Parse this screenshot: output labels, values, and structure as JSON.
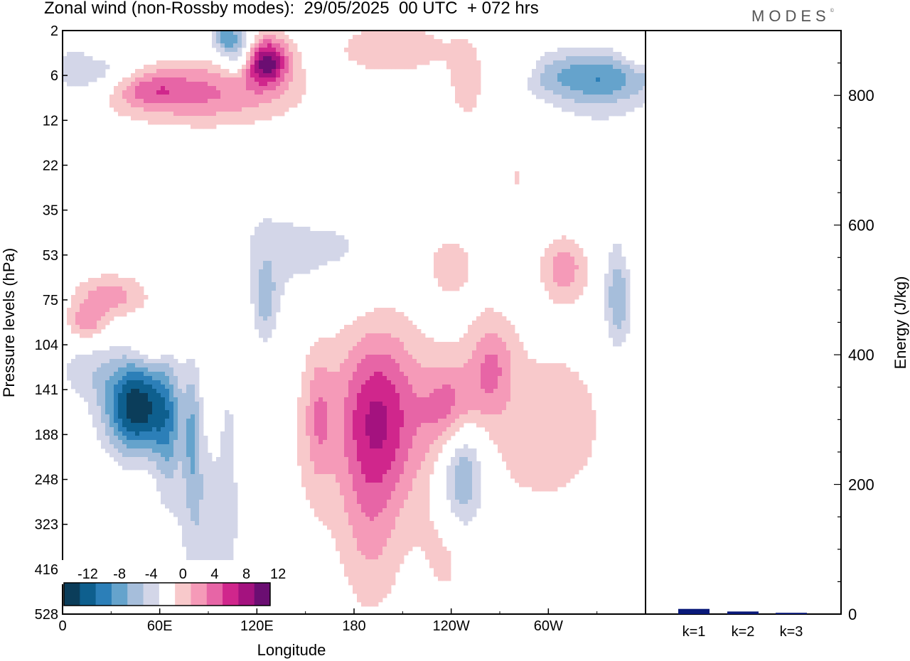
{
  "title": "Zonal wind (non-Rossby modes):  29/05/2025  00 UTC  + 072 hrs",
  "brand": "MODES",
  "brand_mark": "©",
  "colors": {
    "neg": [
      "#0b3d5a",
      "#0e5f8e",
      "#2c7fb8",
      "#65a3cc",
      "#a6bedb",
      "#d3d6e8"
    ],
    "pos": [
      "#f8c9cb",
      "#f59ab8",
      "#e765a6",
      "#d0268c",
      "#a4127f",
      "#6b0e72"
    ],
    "energy_bar": "#0a1a7a"
  },
  "chart_data": [
    {
      "type": "heatmap",
      "title": "Zonal wind (non-Rossby modes):  29/05/2025  00 UTC  + 072 hrs",
      "xlabel": "Longitude",
      "ylabel": "Pressure levels (hPa)",
      "x_ticks": [
        "0",
        "60E",
        "120E",
        "180",
        "120W",
        "60W"
      ],
      "x_tick_deg": [
        0,
        60,
        120,
        180,
        240,
        300
      ],
      "xlim_deg": [
        0,
        360
      ],
      "y_levels": [
        2,
        6,
        12,
        22,
        35,
        53,
        75,
        104,
        141,
        188,
        248,
        323,
        416,
        528
      ],
      "colorbar_ticks": [
        "-12",
        "-8",
        "-4",
        "0",
        "4",
        "8",
        "12"
      ],
      "features": [
        {
          "lon": 46,
          "lev": 8.4,
          "dlon": 14,
          "dlev": 0.75,
          "value": -14
        },
        {
          "lon": 65,
          "lev": 9.0,
          "dlon": 6,
          "dlev": 1.2,
          "value": -5
        },
        {
          "lon": 80,
          "lev": 9.0,
          "dlon": 4,
          "dlev": 1.2,
          "value": -5
        },
        {
          "lon": 88,
          "lev": 10.8,
          "dlon": 12,
          "dlev": 1.6,
          "value": -4
        },
        {
          "lon": 103,
          "lev": 10.0,
          "dlon": 4,
          "dlev": 2.2,
          "value": -3
        },
        {
          "lon": 125,
          "lev": 6.0,
          "dlon": 6,
          "dlev": 0.8,
          "value": -5
        },
        {
          "lon": 15,
          "lev": 7.6,
          "dlon": 14,
          "dlev": 0.5,
          "value": -3
        },
        {
          "lon": 25,
          "lev": 1.0,
          "dlon": 15,
          "dlev": 0.35,
          "value": -4
        },
        {
          "lon": 110,
          "lev": 0.5,
          "dlon": 8,
          "dlev": 0.4,
          "value": -9
        },
        {
          "lon": 100,
          "lev": 0.1,
          "dlon": 6,
          "dlev": 0.3,
          "value": -6
        },
        {
          "lon": 330,
          "lev": 1.0,
          "dlon": 35,
          "dlev": 0.4,
          "value": -7
        },
        {
          "lon": 343,
          "lev": 6.0,
          "dlon": 6,
          "dlev": 0.8,
          "value": -6
        },
        {
          "lon": 247,
          "lev": 9.9,
          "dlon": 10,
          "dlev": 1.0,
          "value": -8
        },
        {
          "lon": 78,
          "lev": 4.4,
          "dlon": 50,
          "dlev": 0.6,
          "value": -2
        },
        {
          "lon": 143,
          "lev": 5.2,
          "dlon": 14,
          "dlev": 0.8,
          "value": -2
        },
        {
          "lon": 175,
          "lev": 5.0,
          "dlon": 15,
          "dlev": 0.8,
          "value": -2
        },
        {
          "lon": 346,
          "lev": 3.6,
          "dlon": 8,
          "dlev": 0.8,
          "value": -2
        },
        {
          "lon": 330,
          "lev": 1.6,
          "dlon": 20,
          "dlev": 0.5,
          "value": -2
        },
        {
          "lon": 5,
          "lev": 0.8,
          "dlon": 8,
          "dlev": 0.6,
          "value": -2
        },
        {
          "lon": 88,
          "lev": 1.4,
          "dlon": 40,
          "dlev": 0.5,
          "value": 6
        },
        {
          "lon": 125,
          "lev": 0.7,
          "dlon": 10,
          "dlev": 0.35,
          "value": 10
        },
        {
          "lon": 118,
          "lev": 0.55,
          "dlon": 14,
          "dlev": 0.45,
          "value": 4
        },
        {
          "lon": 52,
          "lev": 1.3,
          "dlon": 18,
          "dlev": 0.3,
          "value": 4
        },
        {
          "lon": 205,
          "lev": 0.4,
          "dlon": 25,
          "dlev": 0.4,
          "value": 4
        },
        {
          "lon": 250,
          "lev": 1.1,
          "dlon": 8,
          "dlev": 0.6,
          "value": 4
        },
        {
          "lon": 280,
          "lev": 0.8,
          "dlon": 8,
          "dlev": 0.3,
          "value": 4
        },
        {
          "lon": 355,
          "lev": 0.5,
          "dlon": 8,
          "dlev": 0.4,
          "value": 3
        },
        {
          "lon": 195,
          "lev": 8.5,
          "dlon": 18,
          "dlev": 1.3,
          "value": 8
        },
        {
          "lon": 158,
          "lev": 8.6,
          "dlon": 6,
          "dlev": 1.0,
          "value": 4
        },
        {
          "lon": 240,
          "lev": 8.4,
          "dlon": 12,
          "dlev": 0.7,
          "value": 6
        },
        {
          "lon": 265,
          "lev": 7.5,
          "dlon": 10,
          "dlev": 0.8,
          "value": 5
        },
        {
          "lon": 213,
          "lev": 9.5,
          "dlon": 95,
          "dlev": 2.2,
          "value": 2
        },
        {
          "lon": 190,
          "lev": 11.0,
          "dlon": 12,
          "dlev": 1.5,
          "value": 3
        },
        {
          "lon": 305,
          "lev": 8.6,
          "dlon": 22,
          "dlev": 1.2,
          "value": 2
        },
        {
          "lon": 310,
          "lev": 5.3,
          "dlon": 10,
          "dlev": 0.5,
          "value": 5
        },
        {
          "lon": 240,
          "lev": 5.2,
          "dlon": 10,
          "dlev": 0.5,
          "value": 3
        },
        {
          "lon": 62,
          "lev": 4.6,
          "dlon": 14,
          "dlev": 0.35,
          "value": 3
        },
        {
          "lon": 30,
          "lev": 5.9,
          "dlon": 16,
          "dlev": 0.35,
          "value": 5
        },
        {
          "lon": 15,
          "lev": 6.5,
          "dlon": 8,
          "dlev": 0.3,
          "value": 5
        },
        {
          "lon": 55,
          "lev": 7.0,
          "dlon": 8,
          "dlev": 0.3,
          "value": 3
        },
        {
          "lon": 280,
          "lev": 3.3,
          "dlon": 12,
          "dlev": 0.8,
          "value": 2
        },
        {
          "lon": 354,
          "lev": 4.6,
          "dlon": 6,
          "dlev": 0.6,
          "value": 2
        },
        {
          "lon": 238,
          "lev": 11.6,
          "dlon": 10,
          "dlev": 0.8,
          "value": 2
        }
      ]
    },
    {
      "type": "bar",
      "categories": [
        "k=1",
        "k=2",
        "k=3"
      ],
      "values": [
        8,
        4,
        2
      ],
      "ylabel": "Energy (J/kg)",
      "ylim": [
        0,
        900
      ],
      "y_ticks": [
        0,
        200,
        400,
        600,
        800
      ]
    }
  ]
}
